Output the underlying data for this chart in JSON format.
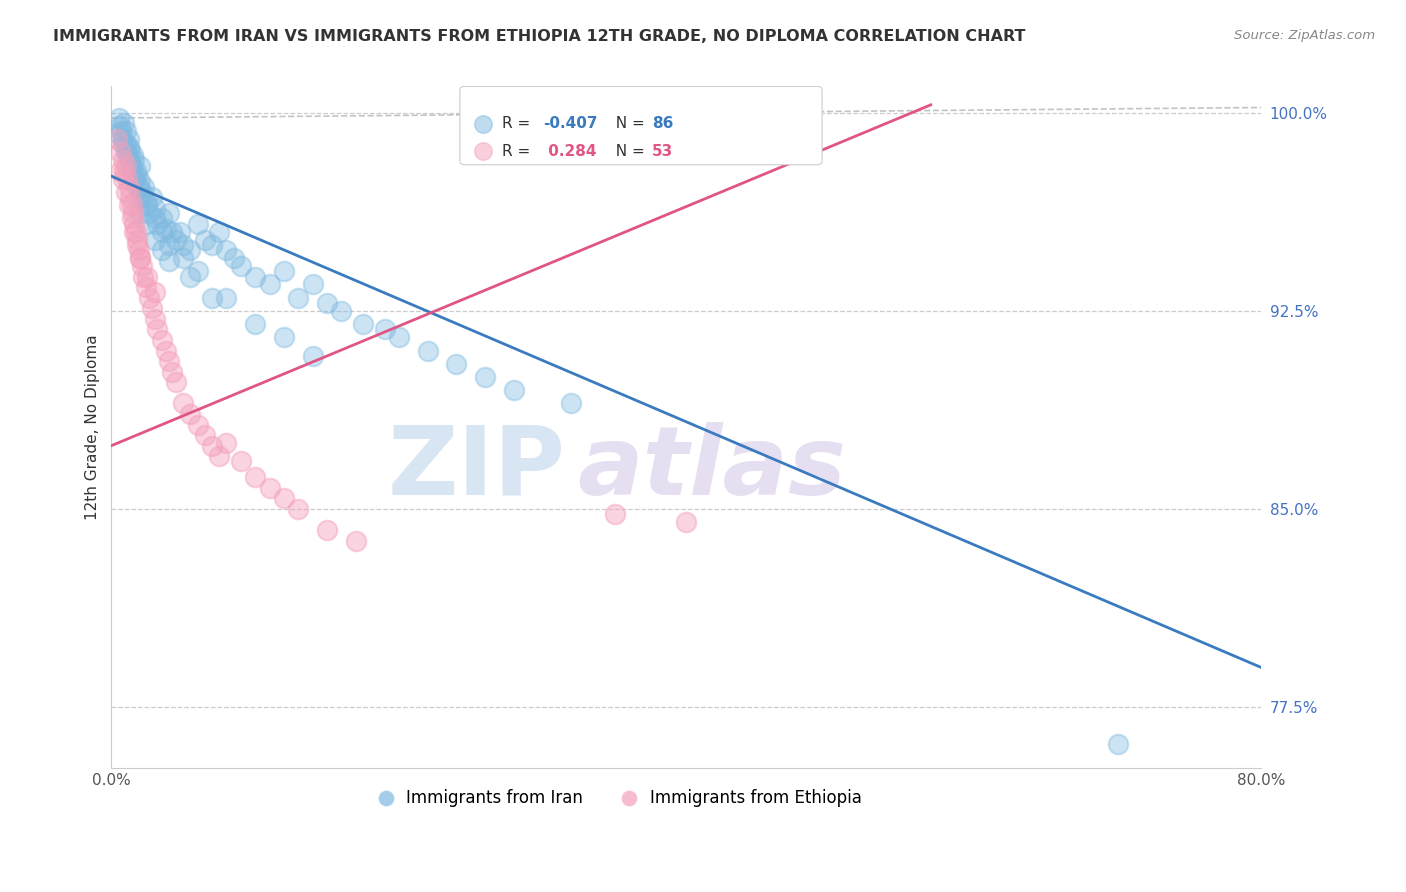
{
  "title": "IMMIGRANTS FROM IRAN VS IMMIGRANTS FROM ETHIOPIA 12TH GRADE, NO DIPLOMA CORRELATION CHART",
  "source": "Source: ZipAtlas.com",
  "ylabel": "12th Grade, No Diploma",
  "xmin": 0.0,
  "xmax": 0.8,
  "ymin": 0.752,
  "ymax": 1.01,
  "yticks": [
    1.0,
    0.925,
    0.85,
    0.775
  ],
  "ytick_labels": [
    "100.0%",
    "92.5%",
    "85.0%",
    "77.5%"
  ],
  "xticks": [
    0.0,
    0.1,
    0.2,
    0.3,
    0.4,
    0.5,
    0.6,
    0.7,
    0.8
  ],
  "xtick_labels": [
    "0.0%",
    "",
    "",
    "",
    "",
    "",
    "",
    "",
    "80.0%"
  ],
  "iran_color": "#7fb9e0",
  "ethiopia_color": "#f4a0bb",
  "iran_line_color": "#3a7abf",
  "ethiopia_line_color": "#e05585",
  "iran_trendline": [
    0.0,
    0.8,
    0.976,
    0.79
  ],
  "eth_trendline": [
    0.0,
    0.57,
    0.874,
    1.003
  ],
  "gray_dash": [
    0.0,
    0.8,
    0.998,
    1.002
  ],
  "iran_x": [
    0.005,
    0.006,
    0.007,
    0.008,
    0.009,
    0.01,
    0.01,
    0.011,
    0.012,
    0.012,
    0.013,
    0.013,
    0.014,
    0.015,
    0.015,
    0.016,
    0.016,
    0.017,
    0.018,
    0.019,
    0.02,
    0.02,
    0.021,
    0.022,
    0.023,
    0.025,
    0.026,
    0.028,
    0.03,
    0.032,
    0.035,
    0.038,
    0.04,
    0.042,
    0.045,
    0.048,
    0.05,
    0.055,
    0.06,
    0.065,
    0.07,
    0.075,
    0.08,
    0.085,
    0.09,
    0.1,
    0.11,
    0.12,
    0.13,
    0.14,
    0.15,
    0.16,
    0.175,
    0.19,
    0.2,
    0.22,
    0.24,
    0.26,
    0.28,
    0.32,
    0.005,
    0.008,
    0.01,
    0.012,
    0.014,
    0.016,
    0.018,
    0.02,
    0.025,
    0.03,
    0.035,
    0.04,
    0.05,
    0.06,
    0.08,
    0.1,
    0.12,
    0.14,
    0.02,
    0.025,
    0.03,
    0.035,
    0.04,
    0.055,
    0.07,
    0.7
  ],
  "iran_y": [
    0.998,
    0.995,
    0.993,
    0.99,
    0.996,
    0.988,
    0.993,
    0.985,
    0.987,
    0.99,
    0.982,
    0.986,
    0.98,
    0.984,
    0.978,
    0.982,
    0.975,
    0.978,
    0.976,
    0.972,
    0.974,
    0.98,
    0.97,
    0.968,
    0.972,
    0.966,
    0.962,
    0.968,
    0.964,
    0.958,
    0.96,
    0.956,
    0.962,
    0.955,
    0.952,
    0.955,
    0.95,
    0.948,
    0.958,
    0.952,
    0.95,
    0.955,
    0.948,
    0.945,
    0.942,
    0.938,
    0.935,
    0.94,
    0.93,
    0.935,
    0.928,
    0.925,
    0.92,
    0.918,
    0.915,
    0.91,
    0.905,
    0.9,
    0.895,
    0.89,
    0.992,
    0.988,
    0.985,
    0.982,
    0.978,
    0.975,
    0.972,
    0.968,
    0.965,
    0.96,
    0.955,
    0.95,
    0.945,
    0.94,
    0.93,
    0.92,
    0.915,
    0.908,
    0.962,
    0.958,
    0.952,
    0.948,
    0.944,
    0.938,
    0.93,
    0.761
  ],
  "eth_x": [
    0.004,
    0.006,
    0.008,
    0.009,
    0.01,
    0.011,
    0.012,
    0.013,
    0.014,
    0.015,
    0.016,
    0.017,
    0.018,
    0.019,
    0.02,
    0.021,
    0.022,
    0.024,
    0.026,
    0.028,
    0.03,
    0.032,
    0.035,
    0.038,
    0.04,
    0.042,
    0.045,
    0.05,
    0.055,
    0.06,
    0.065,
    0.07,
    0.075,
    0.08,
    0.09,
    0.1,
    0.11,
    0.12,
    0.13,
    0.15,
    0.17,
    0.006,
    0.008,
    0.01,
    0.012,
    0.014,
    0.016,
    0.018,
    0.02,
    0.025,
    0.03,
    0.35,
    0.4
  ],
  "eth_y": [
    0.99,
    0.985,
    0.982,
    0.978,
    0.98,
    0.975,
    0.972,
    0.968,
    0.965,
    0.962,
    0.958,
    0.955,
    0.952,
    0.948,
    0.945,
    0.942,
    0.938,
    0.934,
    0.93,
    0.926,
    0.922,
    0.918,
    0.914,
    0.91,
    0.906,
    0.902,
    0.898,
    0.89,
    0.886,
    0.882,
    0.878,
    0.874,
    0.87,
    0.875,
    0.868,
    0.862,
    0.858,
    0.854,
    0.85,
    0.842,
    0.838,
    0.978,
    0.975,
    0.97,
    0.965,
    0.96,
    0.955,
    0.95,
    0.945,
    0.938,
    0.932,
    0.848,
    0.845
  ]
}
